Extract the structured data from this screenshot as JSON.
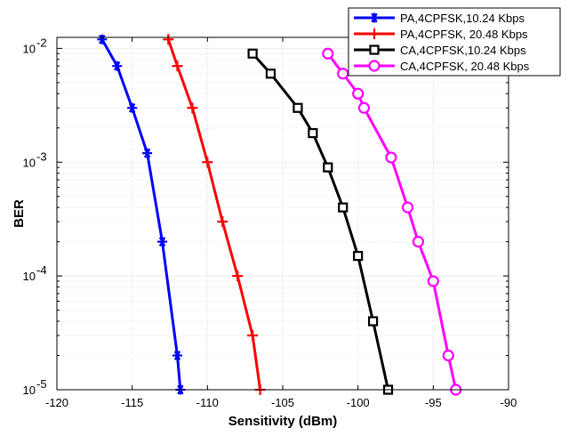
{
  "chart_data": {
    "type": "line",
    "title": "",
    "xlabel": "Sensitivity (dBm)",
    "ylabel": "BER",
    "xlim": [
      -120,
      -90
    ],
    "ylim": [
      1e-05,
      0.0125
    ],
    "yscale": "log",
    "grid": true,
    "legend_position": "top-right",
    "x_ticks": [
      -120,
      -115,
      -110,
      -105,
      -100,
      -95,
      -90
    ],
    "x_tick_labels": [
      "-120",
      "-115",
      "-110",
      "-105",
      "-100",
      "-95",
      "-90"
    ],
    "y_ticks": [
      1e-05,
      0.0001,
      0.001,
      0.01
    ],
    "y_tick_labels": [
      {
        "base": "10",
        "exp": "-5"
      },
      {
        "base": "10",
        "exp": "-4"
      },
      {
        "base": "10",
        "exp": "-3"
      },
      {
        "base": "10",
        "exp": "-2"
      }
    ],
    "series": [
      {
        "name": "PA,4CPFSK,10.24 Kbps",
        "color": "#0000ff",
        "marker": "asterisk",
        "points": [
          [
            -117.0,
            0.012
          ],
          [
            -116.0,
            0.007
          ],
          [
            -115.0,
            0.003
          ],
          [
            -114.0,
            0.0012
          ],
          [
            -113.0,
            0.0002
          ],
          [
            -112.0,
            2e-05
          ],
          [
            -111.8,
            1e-05
          ]
        ]
      },
      {
        "name": "PA,4CPFSK, 20.48 Kbps",
        "color": "#ff0000",
        "marker": "plus",
        "points": [
          [
            -112.6,
            0.012
          ],
          [
            -112.0,
            0.007
          ],
          [
            -111.0,
            0.003
          ],
          [
            -110.0,
            0.001
          ],
          [
            -109.0,
            0.0003
          ],
          [
            -108.0,
            0.0001
          ],
          [
            -107.0,
            3e-05
          ],
          [
            -106.5,
            1e-05
          ]
        ]
      },
      {
        "name": "CA,4CPFSK,10.24 Kbps",
        "color": "#000000",
        "marker": "square",
        "points": [
          [
            -107.0,
            0.009
          ],
          [
            -105.8,
            0.006
          ],
          [
            -104.0,
            0.003
          ],
          [
            -103.0,
            0.0018
          ],
          [
            -102.0,
            0.0009
          ],
          [
            -101.0,
            0.0004
          ],
          [
            -100.0,
            0.00015
          ],
          [
            -99.0,
            4e-05
          ],
          [
            -98.0,
            1e-05
          ]
        ]
      },
      {
        "name": "CA,4CPFSK, 20.48 Kbps",
        "color": "#ff00ff",
        "marker": "circle",
        "points": [
          [
            -102.0,
            0.009
          ],
          [
            -101.0,
            0.006
          ],
          [
            -100.0,
            0.004
          ],
          [
            -99.6,
            0.003
          ],
          [
            -97.8,
            0.0011
          ],
          [
            -96.7,
            0.0004
          ],
          [
            -96.0,
            0.0002
          ],
          [
            -95.0,
            9e-05
          ],
          [
            -94.0,
            2e-05
          ],
          [
            -93.5,
            1e-05
          ]
        ]
      }
    ]
  }
}
